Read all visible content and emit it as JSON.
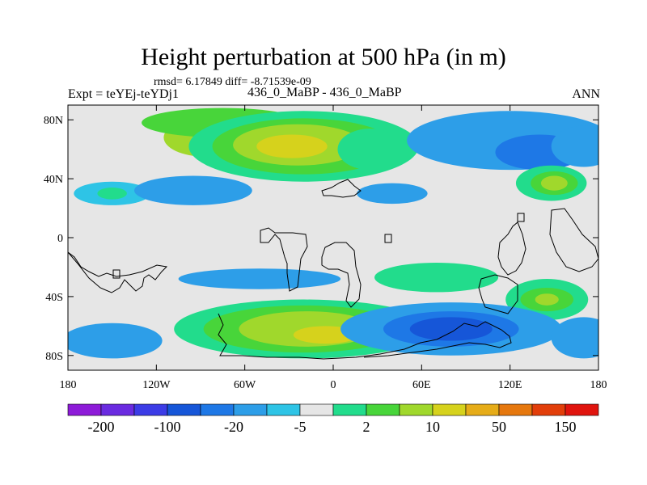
{
  "header": {
    "title": "Height perturbation at 500 hPa (in m)",
    "stats": "rmsd= 6.17849 diff= -8.71539e-09",
    "experiment": "Expt = teYEj-teYDj1",
    "cases": "436_0_MaBP - 436_0_MaBP",
    "season": "ANN"
  },
  "chart_data": {
    "type": "heatmap",
    "title": "Height perturbation at 500 hPa (in m)",
    "xlabel": "",
    "ylabel": "",
    "xlim": [
      -180,
      180
    ],
    "ylim": [
      -90,
      90
    ],
    "x_ticks": [
      {
        "value": -180,
        "label": "180"
      },
      {
        "value": -120,
        "label": "120W"
      },
      {
        "value": -60,
        "label": "60W"
      },
      {
        "value": 0,
        "label": "0"
      },
      {
        "value": 60,
        "label": "60E"
      },
      {
        "value": 120,
        "label": "120E"
      },
      {
        "value": 180,
        "label": "180"
      }
    ],
    "y_ticks": [
      {
        "value": 80,
        "label": "80N"
      },
      {
        "value": 40,
        "label": "40N"
      },
      {
        "value": 0,
        "label": "0"
      },
      {
        "value": -40,
        "label": "40S"
      },
      {
        "value": -80,
        "label": "80S"
      }
    ],
    "colorbar": {
      "colors": [
        "#8d1bd8",
        "#6a2be0",
        "#3c3ce6",
        "#1656d8",
        "#1e78e6",
        "#2d9ee8",
        "#2ec4e6",
        "#e6e6e6",
        "#22dc8c",
        "#48d53a",
        "#a0d82c",
        "#d6d21c",
        "#e6ac18",
        "#e6780e",
        "#e23e0a",
        "#e0140e"
      ],
      "labels": [
        {
          "boundary": 1,
          "text": "-200"
        },
        {
          "boundary": 3,
          "text": "-100"
        },
        {
          "boundary": 5,
          "text": "-20"
        },
        {
          "boundary": 7,
          "text": "-5"
        },
        {
          "boundary": 9,
          "text": "2"
        },
        {
          "boundary": 11,
          "text": "10"
        },
        {
          "boundary": 13,
          "text": "50"
        },
        {
          "boundary": 15,
          "text": "150"
        }
      ]
    },
    "features": [
      {
        "lon": -87,
        "lat": 68,
        "rx": 28,
        "ry": 13,
        "level": 3
      },
      {
        "lon": -75,
        "lat": 78,
        "rx": 55,
        "ry": 10,
        "level": 2
      },
      {
        "lon": -20,
        "lat": 62,
        "rx": 78,
        "ry": 24,
        "level": 1
      },
      {
        "lon": -20,
        "lat": 62,
        "rx": 62,
        "ry": 19,
        "level": 2
      },
      {
        "lon": -24,
        "lat": 63,
        "rx": 44,
        "ry": 14,
        "level": 3
      },
      {
        "lon": -28,
        "lat": 62,
        "rx": 24,
        "ry": 8,
        "level": 4
      },
      {
        "lon": 25,
        "lat": 60,
        "rx": 22,
        "ry": 14,
        "level": 1
      },
      {
        "lon": 120,
        "lat": 66,
        "rx": 70,
        "ry": 20,
        "level": -2
      },
      {
        "lon": 140,
        "lat": 58,
        "rx": 30,
        "ry": 12,
        "level": -3
      },
      {
        "lon": 170,
        "lat": 62,
        "rx": 22,
        "ry": 14,
        "level": -2
      },
      {
        "lon": 148,
        "lat": 37,
        "rx": 24,
        "ry": 12,
        "level": 1
      },
      {
        "lon": 150,
        "lat": 37,
        "rx": 16,
        "ry": 8,
        "level": 2
      },
      {
        "lon": 150,
        "lat": 37,
        "rx": 9,
        "ry": 5,
        "level": 3
      },
      {
        "lon": 40,
        "lat": 30,
        "rx": 24,
        "ry": 7,
        "level": -2
      },
      {
        "lon": -150,
        "lat": 30,
        "rx": 26,
        "ry": 8,
        "level": -1
      },
      {
        "lon": -150,
        "lat": 30,
        "rx": 10,
        "ry": 4,
        "level": 1
      },
      {
        "lon": -95,
        "lat": 32,
        "rx": 40,
        "ry": 10,
        "level": -2
      },
      {
        "lon": -50,
        "lat": -28,
        "rx": 55,
        "ry": 7,
        "level": -2
      },
      {
        "lon": 70,
        "lat": -27,
        "rx": 42,
        "ry": 10,
        "level": 1
      },
      {
        "lon": 145,
        "lat": -42,
        "rx": 28,
        "ry": 14,
        "level": 1
      },
      {
        "lon": 145,
        "lat": -42,
        "rx": 18,
        "ry": 8,
        "level": 2
      },
      {
        "lon": 145,
        "lat": -42,
        "rx": 8,
        "ry": 4,
        "level": 3
      },
      {
        "lon": -20,
        "lat": -62,
        "rx": 88,
        "ry": 20,
        "level": 1
      },
      {
        "lon": -20,
        "lat": -62,
        "rx": 68,
        "ry": 16,
        "level": 2
      },
      {
        "lon": -18,
        "lat": -62,
        "rx": 46,
        "ry": 12,
        "level": 3
      },
      {
        "lon": -5,
        "lat": -66,
        "rx": 22,
        "ry": 6,
        "level": 4
      },
      {
        "lon": 80,
        "lat": -62,
        "rx": 75,
        "ry": 18,
        "level": -2
      },
      {
        "lon": 80,
        "lat": -62,
        "rx": 46,
        "ry": 12,
        "level": -3
      },
      {
        "lon": 80,
        "lat": -62,
        "rx": 28,
        "ry": 8,
        "level": -4
      },
      {
        "lon": -150,
        "lat": -70,
        "rx": 34,
        "ry": 12,
        "level": -2
      },
      {
        "lon": 170,
        "lat": -68,
        "rx": 22,
        "ry": 14,
        "level": -2
      }
    ]
  }
}
